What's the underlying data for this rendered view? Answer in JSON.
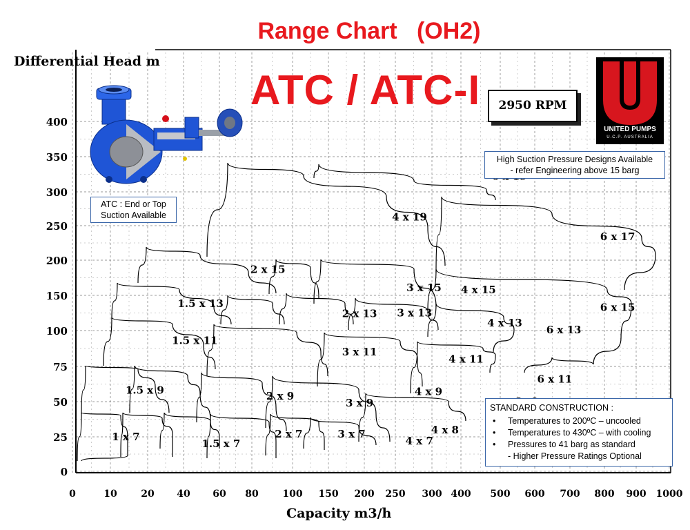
{
  "titles": {
    "main": "Range Chart   (OH2)",
    "model": "ATC / ATC-I",
    "rpm": "2950 RPM"
  },
  "notes": {
    "atc_line1": "ATC : End or Top",
    "atc_line2": "Suction Available",
    "high_suction_line1": "High Suction Pressure Designs Available",
    "high_suction_line2": "- refer Engineering above 15 barg",
    "std_title": "STANDARD CONSTRUCTION :",
    "std_items": [
      "Temperatures to 200ºC – uncooled",
      "Temperatures to 430ºC – with cooling",
      "Pressures to 41 barg as standard",
      "- Higher Pressure Ratings Optional"
    ]
  },
  "logo": {
    "name": "UNITED PUMPS",
    "sub": "U.C.P. AUSTRALIA"
  },
  "colors": {
    "title_red": "#e8191e",
    "logo_red": "#d7161e",
    "callout_border": "#3a66a8",
    "pump_blue": "#1f55d6"
  },
  "chart_data": {
    "type": "area",
    "xlabel": "Capacity m3/h",
    "ylabel": "Differential Head m",
    "x_scale": "log",
    "xlim": [
      8,
      1000
    ],
    "ylim": [
      0,
      400
    ],
    "x_ticks": [
      "0",
      "10",
      "20",
      "40",
      "60",
      "80",
      "100",
      "150",
      "200",
      "250",
      "300",
      "400",
      "500",
      "600",
      "700",
      "800",
      "900",
      "1000"
    ],
    "y_ticks": [
      "0",
      "25",
      "50",
      "75",
      "100",
      "150",
      "200",
      "250",
      "300",
      "350",
      "400"
    ],
    "grid": true,
    "pump_sizes": [
      {
        "name": "1 x 7",
        "label_x": 12,
        "label_y": 25
      },
      {
        "name": "1.5 x 7",
        "label_x": 26,
        "label_y": 20
      },
      {
        "name": "2 x 7",
        "label_x": 45,
        "label_y": 27
      },
      {
        "name": "3 x 7",
        "label_x": 75,
        "label_y": 27
      },
      {
        "name": "4 x 7",
        "label_x": 130,
        "label_y": 22
      },
      {
        "name": "4 x 8",
        "label_x": 160,
        "label_y": 30
      },
      {
        "name": "1.5 x 9",
        "label_x": 14,
        "label_y": 58
      },
      {
        "name": "2 x 9",
        "label_x": 42,
        "label_y": 54
      },
      {
        "name": "3 x 9",
        "label_x": 80,
        "label_y": 49
      },
      {
        "name": "4 x 9",
        "label_x": 140,
        "label_y": 57
      },
      {
        "name": "6 x9",
        "label_x": 310,
        "label_y": 50
      },
      {
        "name": "1.5 x 11",
        "label_x": 21,
        "label_y": 93
      },
      {
        "name": "3 x 11",
        "label_x": 80,
        "label_y": 85
      },
      {
        "name": "4 x 11",
        "label_x": 190,
        "label_y": 80
      },
      {
        "name": "6 x 11",
        "label_x": 390,
        "label_y": 66
      },
      {
        "name": "1.5 x 13",
        "label_x": 22,
        "label_y": 138
      },
      {
        "name": "2 x 13",
        "label_x": 80,
        "label_y": 124
      },
      {
        "name": "3 x 13",
        "label_x": 125,
        "label_y": 125
      },
      {
        "name": "4 x 13",
        "label_x": 260,
        "label_y": 111
      },
      {
        "name": "6 x 13",
        "label_x": 420,
        "label_y": 101
      },
      {
        "name": "2 x 15",
        "label_x": 38,
        "label_y": 187
      },
      {
        "name": "3 x 15",
        "label_x": 135,
        "label_y": 161
      },
      {
        "name": "4 x 15",
        "label_x": 210,
        "label_y": 158
      },
      {
        "name": "6 x 15",
        "label_x": 650,
        "label_y": 133
      },
      {
        "name": "4 x 19",
        "label_x": 120,
        "label_y": 263
      },
      {
        "name": "6 x 19",
        "label_x": 270,
        "label_y": 322
      },
      {
        "name": "6 x 17",
        "label_x": 650,
        "label_y": 234
      }
    ]
  }
}
